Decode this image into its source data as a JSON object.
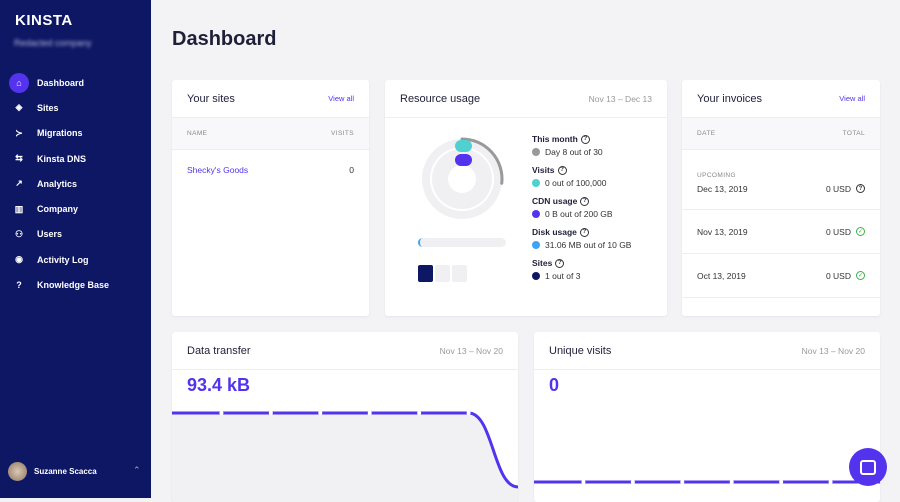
{
  "brand": {
    "logo": "KINSTA",
    "company_blurred": "Redacted company"
  },
  "sidebar": {
    "items": [
      {
        "label": "Dashboard",
        "icon": "home-icon",
        "glyph": "⌂",
        "active": true
      },
      {
        "label": "Sites",
        "icon": "layers-icon",
        "glyph": "◈"
      },
      {
        "label": "Migrations",
        "icon": "migrate-icon",
        "glyph": "≻"
      },
      {
        "label": "Kinsta DNS",
        "icon": "dns-icon",
        "glyph": "⇆"
      },
      {
        "label": "Analytics",
        "icon": "trend-icon",
        "glyph": "↗"
      },
      {
        "label": "Company",
        "icon": "building-icon",
        "glyph": "▥"
      },
      {
        "label": "Users",
        "icon": "user-add-icon",
        "glyph": "⚇"
      },
      {
        "label": "Activity Log",
        "icon": "eye-icon",
        "glyph": "◉"
      },
      {
        "label": "Knowledge Base",
        "icon": "question-icon",
        "glyph": "?"
      }
    ],
    "user": "Suzanne Scacca"
  },
  "page_title": "Dashboard",
  "sites": {
    "title": "Your sites",
    "view_all": "View all",
    "col_name": "NAME",
    "col_visits": "VISITS",
    "rows": [
      {
        "name": "Shecky's Goods",
        "visits": "0"
      }
    ]
  },
  "resource": {
    "title": "Resource usage",
    "range": "Nov 13 – Dec 13",
    "items": [
      {
        "label": "This month",
        "value": "Day 8 out of 30",
        "color": "#999999"
      },
      {
        "label": "Visits",
        "value": "0 out of 100,000",
        "color": "#4fd1d1"
      },
      {
        "label": "CDN usage",
        "value": "0 B out of 200 GB",
        "color": "#5333ed"
      },
      {
        "label": "Disk usage",
        "value": "31.06 MB out of 10 GB",
        "color": "#3da4f5"
      },
      {
        "label": "Sites",
        "value": "1 out of 3",
        "color": "#0e1764"
      }
    ],
    "month_progress": 0.267,
    "sites_used": 1,
    "sites_total": 3
  },
  "invoices": {
    "title": "Your invoices",
    "view_all": "View all",
    "col_date": "DATE",
    "col_total": "TOTAL",
    "upcoming": "UPCOMING",
    "rows": [
      {
        "date": "Dec 13, 2019",
        "total": "0 USD",
        "status": "upcoming"
      },
      {
        "date": "Nov 13, 2019",
        "total": "0 USD",
        "status": "paid"
      },
      {
        "date": "Oct 13, 2019",
        "total": "0 USD",
        "status": "paid"
      }
    ]
  },
  "data_transfer": {
    "title": "Data transfer",
    "range": "Nov 13 – Nov 20",
    "value": "93.4 kB"
  },
  "unique_visits": {
    "title": "Unique visits",
    "range": "Nov 13 – Nov 20",
    "value": "0"
  },
  "colors": {
    "sidebar": "#0e1764",
    "accent": "#5333ed",
    "success": "#3ab34a"
  }
}
